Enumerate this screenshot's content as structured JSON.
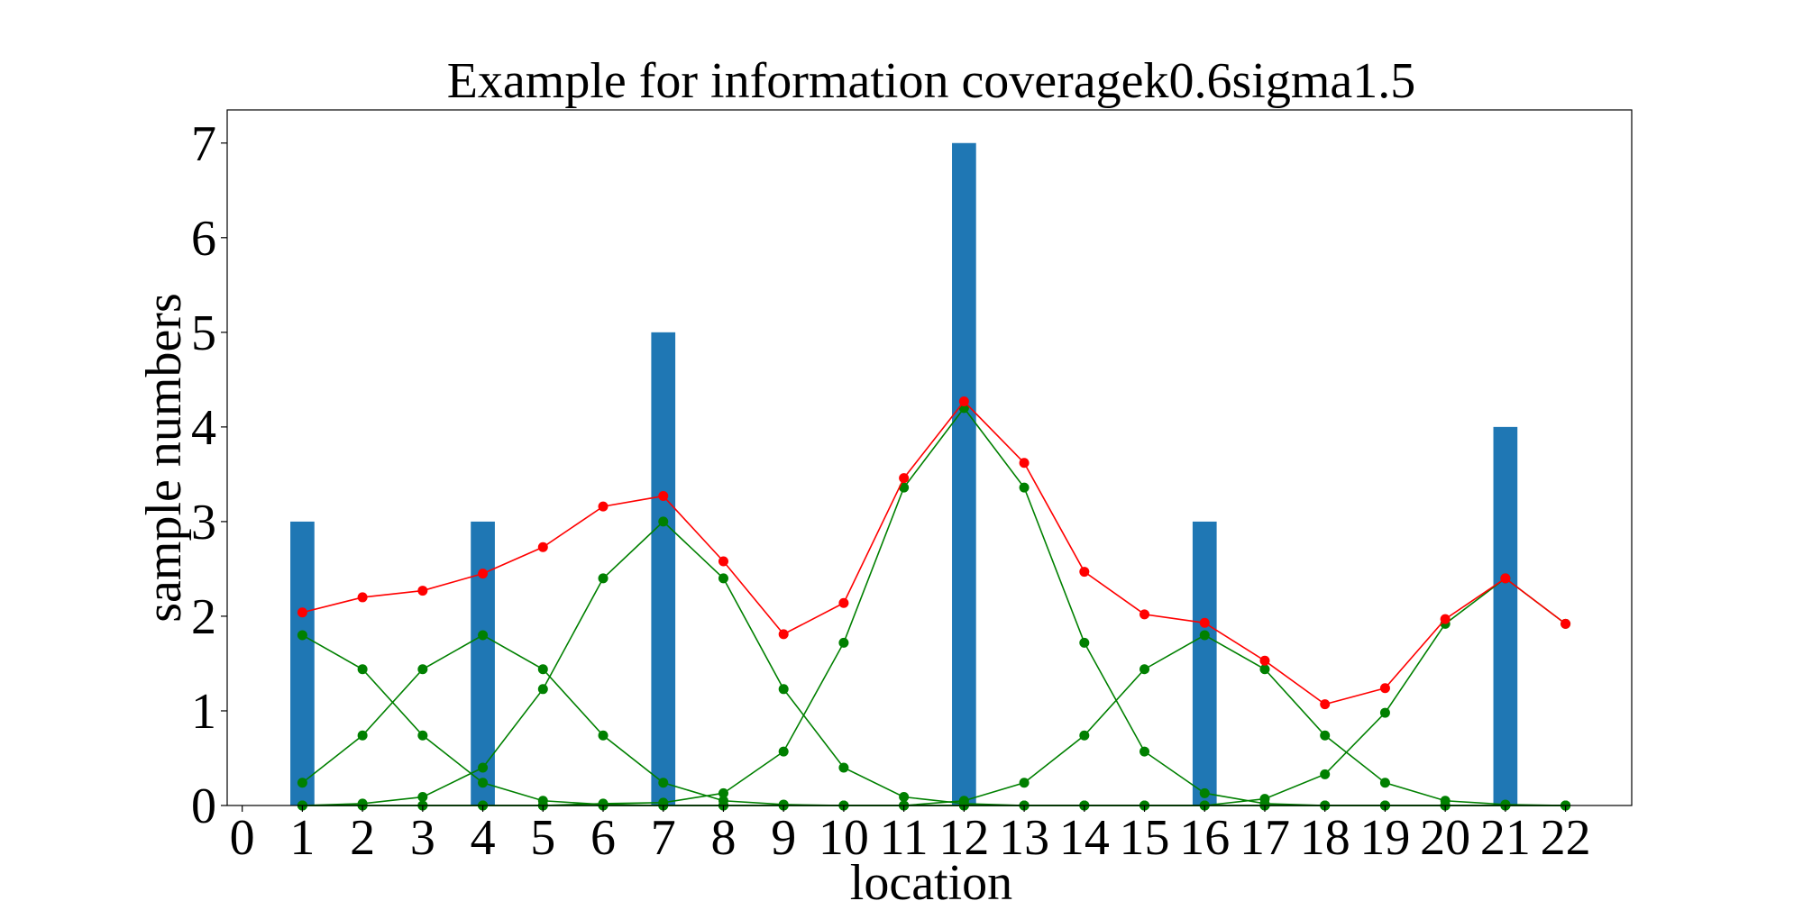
{
  "chart_data": {
    "type": "bar",
    "title": "Example for information coveragek0.6sigma1.5",
    "xlabel": "location",
    "ylabel": "sample numbers",
    "xlim": [
      -0.25,
      23.1
    ],
    "ylim": [
      0,
      7.35
    ],
    "xticks": [
      0,
      1,
      2,
      3,
      4,
      5,
      6,
      7,
      8,
      9,
      10,
      11,
      12,
      13,
      14,
      15,
      16,
      17,
      18,
      19,
      20,
      21,
      22
    ],
    "yticks": [
      0,
      1,
      2,
      3,
      4,
      5,
      6,
      7
    ],
    "grid": false,
    "legend": "none",
    "bars": {
      "name": "",
      "color": "#1f77b4",
      "width": 0.4,
      "x": [
        1,
        4,
        7,
        12,
        16,
        21
      ],
      "values": [
        3,
        3,
        5,
        7,
        3,
        4
      ]
    },
    "red_line": {
      "name": "",
      "color": "#ff0000",
      "x": [
        1,
        2,
        3,
        4,
        5,
        6,
        7,
        8,
        9,
        10,
        11,
        12,
        13,
        14,
        15,
        16,
        17,
        18,
        19,
        20,
        21,
        22
      ],
      "values": [
        2.04,
        2.2,
        2.27,
        2.45,
        2.73,
        3.16,
        3.27,
        2.58,
        1.81,
        2.14,
        3.46,
        4.27,
        3.62,
        2.47,
        2.02,
        1.93,
        1.53,
        1.07,
        1.24,
        1.97,
        2.4,
        1.92
      ]
    },
    "green_series": [
      {
        "name": "",
        "color": "#008000",
        "x": [
          1,
          2,
          3,
          4,
          5,
          6,
          7,
          8,
          9,
          10,
          11,
          12,
          13,
          14,
          15,
          16,
          17,
          18,
          19,
          20,
          21,
          22
        ],
        "values": [
          1.8,
          1.44,
          0.74,
          0.24,
          0.05,
          0.01,
          0.0,
          0.0,
          0.0,
          0.0,
          0.0,
          0.0,
          0.0,
          0.0,
          0.0,
          0.0,
          0.0,
          0.0,
          0.0,
          0.0,
          0.0,
          0.0
        ]
      },
      {
        "name": "",
        "color": "#008000",
        "x": [
          1,
          2,
          3,
          4,
          5,
          6,
          7,
          8,
          9,
          10,
          11,
          12,
          13,
          14,
          15,
          16,
          17,
          18,
          19,
          20,
          21,
          22
        ],
        "values": [
          0.24,
          0.74,
          1.44,
          1.8,
          1.44,
          0.74,
          0.24,
          0.05,
          0.01,
          0.0,
          0.0,
          0.0,
          0.0,
          0.0,
          0.0,
          0.0,
          0.0,
          0.0,
          0.0,
          0.0,
          0.0,
          0.0
        ]
      },
      {
        "name": "",
        "color": "#008000",
        "x": [
          1,
          2,
          3,
          4,
          5,
          6,
          7,
          8,
          9,
          10,
          11,
          12,
          13,
          14,
          15,
          16,
          17,
          18,
          19,
          20,
          21,
          22
        ],
        "values": [
          0.0,
          0.02,
          0.09,
          0.4,
          1.23,
          2.4,
          3.0,
          2.4,
          1.23,
          0.4,
          0.09,
          0.02,
          0.0,
          0.0,
          0.0,
          0.0,
          0.0,
          0.0,
          0.0,
          0.0,
          0.0,
          0.0
        ]
      },
      {
        "name": "",
        "color": "#008000",
        "x": [
          1,
          2,
          3,
          4,
          5,
          6,
          7,
          8,
          9,
          10,
          11,
          12,
          13,
          14,
          15,
          16,
          17,
          18,
          19,
          20,
          21,
          22
        ],
        "values": [
          0.0,
          0.0,
          0.0,
          0.0,
          0.0,
          0.02,
          0.03,
          0.13,
          0.57,
          1.72,
          3.36,
          4.2,
          3.36,
          1.72,
          0.57,
          0.13,
          0.02,
          0.0,
          0.0,
          0.0,
          0.0,
          0.0
        ]
      },
      {
        "name": "",
        "color": "#008000",
        "x": [
          1,
          2,
          3,
          4,
          5,
          6,
          7,
          8,
          9,
          10,
          11,
          12,
          13,
          14,
          15,
          16,
          17,
          18,
          19,
          20,
          21,
          22
        ],
        "values": [
          0.0,
          0.0,
          0.0,
          0.0,
          0.0,
          0.0,
          0.0,
          0.0,
          0.0,
          0.0,
          0.0,
          0.05,
          0.24,
          0.74,
          1.44,
          1.8,
          1.44,
          0.74,
          0.24,
          0.05,
          0.01,
          0.0
        ]
      },
      {
        "name": "",
        "color": "#008000",
        "x": [
          1,
          2,
          3,
          4,
          5,
          6,
          7,
          8,
          9,
          10,
          11,
          12,
          13,
          14,
          15,
          16,
          17,
          18,
          19,
          20,
          21,
          22
        ],
        "values": [
          0.0,
          0.0,
          0.0,
          0.0,
          0.0,
          0.0,
          0.0,
          0.0,
          0.0,
          0.0,
          0.0,
          0.0,
          0.0,
          0.0,
          0.0,
          0.0,
          0.07,
          0.33,
          0.98,
          1.92,
          2.4,
          1.92
        ]
      }
    ]
  }
}
